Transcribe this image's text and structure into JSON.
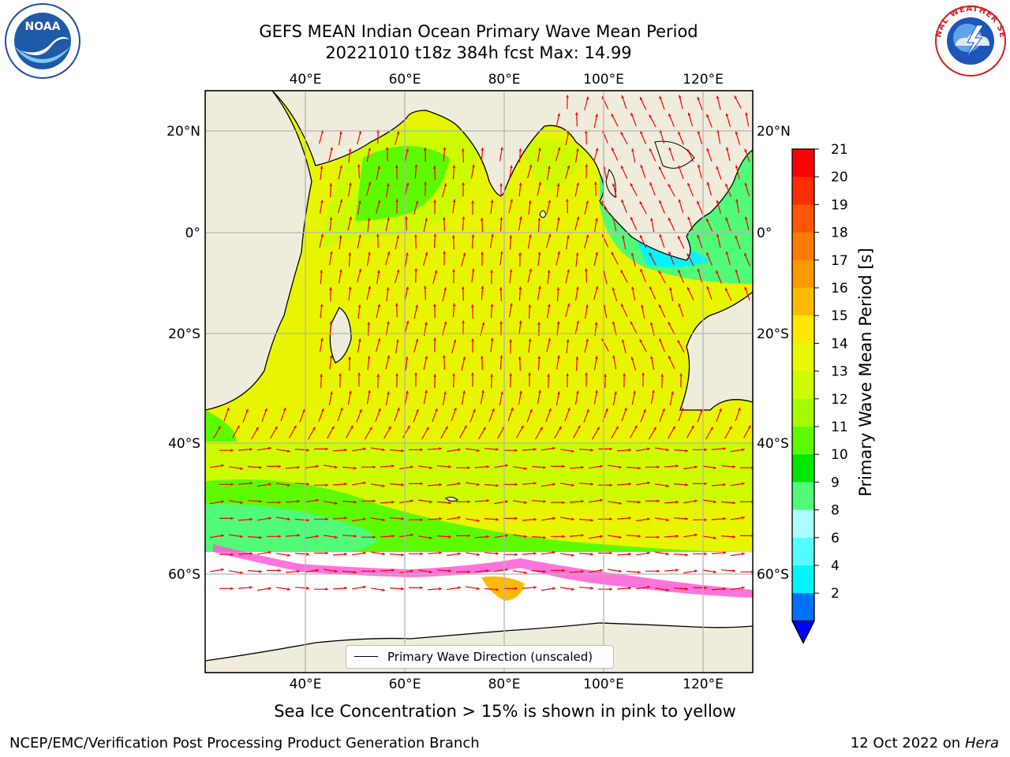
{
  "header": {
    "title_line1": "GEFS MEAN Indian Ocean Primary Wave Mean Period",
    "title_line2": "20221010 t18z 384h fcst   Max: 14.99"
  },
  "map": {
    "top_lon_labels": [
      "40°E",
      "60°E",
      "80°E",
      "100°E",
      "120°E"
    ],
    "bottom_lon_labels": [
      "40°E",
      "60°E",
      "80°E",
      "100°E",
      "120°E"
    ],
    "left_lat_labels": [
      "20°N",
      "0°",
      "20°S",
      "40°S",
      "60°S"
    ],
    "right_lat_labels": [
      "20°N",
      "0°",
      "20°S",
      "40°S",
      "60°S"
    ],
    "legend_label": "Primary Wave Direction (unscaled)",
    "arrow_color": "#ff0000",
    "land_color": "#efecdc"
  },
  "colorbar": {
    "title": "Primary Wave Mean Period [s]",
    "ticks": [
      "21",
      "20",
      "19",
      "18",
      "17",
      "16",
      "15",
      "14",
      "13",
      "12",
      "11",
      "10",
      "9",
      "8",
      "6",
      "4",
      "2"
    ],
    "colors": [
      "#fe0000",
      "#fe2d00",
      "#fe5700",
      "#fe7a00",
      "#fe9a00",
      "#feba00",
      "#fee700",
      "#e7fa00",
      "#cdfc00",
      "#a6fb00",
      "#5cfb00",
      "#00e600",
      "#4ffb79",
      "#aafffe",
      "#55fefe",
      "#00f5fe",
      "#0070fe"
    ],
    "under_color": "#0000ff"
  },
  "caption": "Sea Ice Concentration > 15% is shown in pink to yellow",
  "footer": {
    "left": "NCEP/EMC/Verification Post Processing Product Generation Branch",
    "date": "12 Oct 2022 on",
    "machine": "Hera"
  },
  "logos": {
    "noaa_text": "NOAA",
    "nws_text": "NATIONAL WEATHER SERVICE"
  }
}
